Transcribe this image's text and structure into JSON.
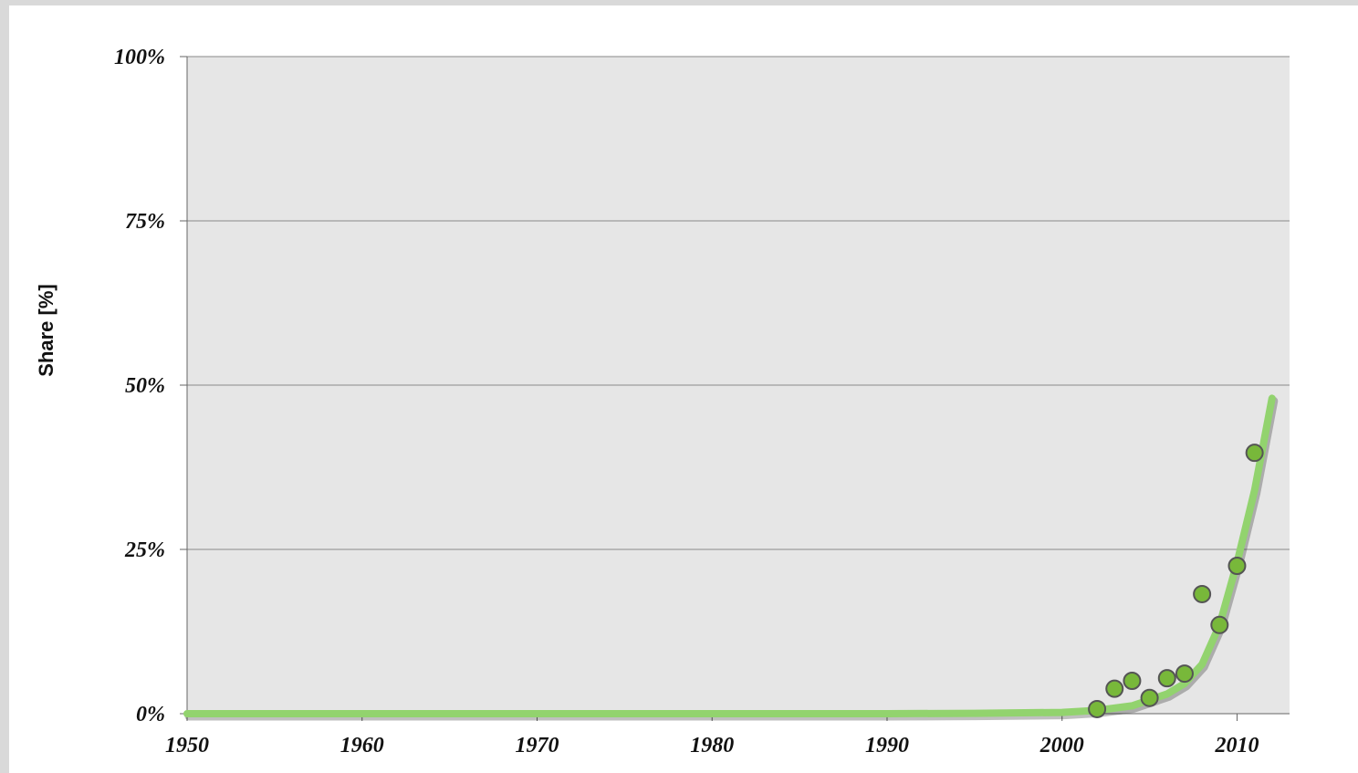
{
  "chart_data": {
    "type": "scatter",
    "y_label": "Share [%]",
    "xlim": [
      1950,
      2013
    ],
    "ylim": [
      0,
      100
    ],
    "xticks": [
      1950,
      1960,
      1970,
      1980,
      1990,
      2000,
      2010
    ],
    "yticks": [
      {
        "value": 0,
        "label": "0%"
      },
      {
        "value": 25,
        "label": "25%"
      },
      {
        "value": 50,
        "label": "50%"
      },
      {
        "value": 75,
        "label": "75%"
      },
      {
        "value": 100,
        "label": "100%"
      }
    ],
    "grid": true,
    "series": [
      {
        "kind": "line",
        "color": "#92d36e",
        "x": [
          1950,
          1960,
          1970,
          1980,
          1990,
          1995,
          2000,
          2002,
          2004,
          2006,
          2007,
          2008,
          2009,
          2010,
          2011,
          2012
        ],
        "values": [
          0,
          0,
          0,
          0,
          0,
          0.05,
          0.2,
          0.5,
          1.2,
          3,
          4.6,
          7.5,
          13.5,
          23,
          34,
          48
        ]
      },
      {
        "kind": "points",
        "color": "#78b83a",
        "x": [
          2002,
          2003,
          2004,
          2005,
          2006,
          2007,
          2008,
          2009,
          2010,
          2011
        ],
        "values": [
          0.7,
          3.8,
          5,
          2.4,
          5.4,
          6.1,
          18.2,
          13.5,
          22.5,
          39.7
        ]
      }
    ]
  }
}
